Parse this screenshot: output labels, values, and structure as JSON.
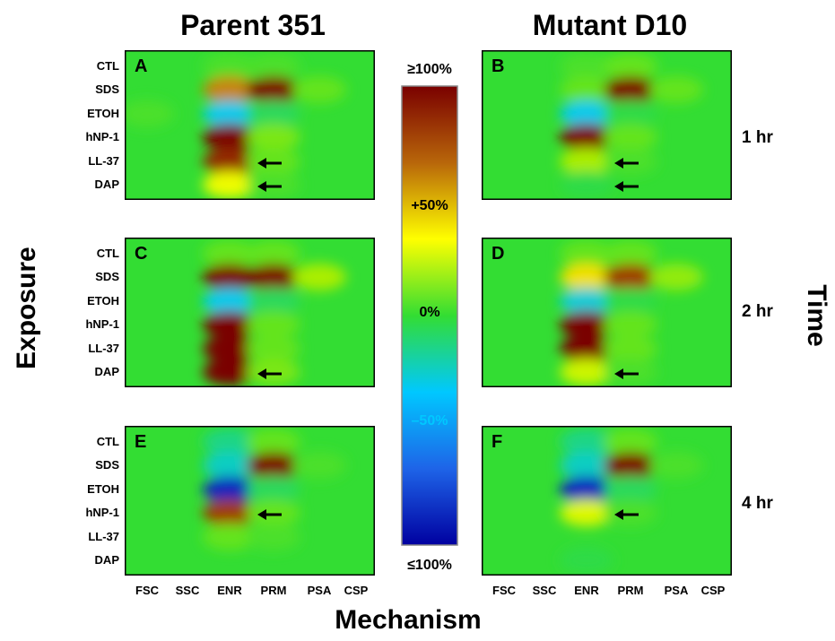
{
  "titles": {
    "left_column": "Parent 351",
    "right_column": "Mutant D10",
    "y_axis": "Exposure",
    "x_axis": "Mechanism",
    "right_axis": "Time"
  },
  "times": [
    "1 hr",
    "2 hr",
    "4 hr"
  ],
  "colorbar": {
    "labels": [
      "≥100%",
      "+50%",
      "0%",
      "–50%",
      "≤100%"
    ],
    "stops": [
      "#7a0000",
      "#b8660a",
      "#ffff00",
      "#33dd33",
      "#00c8ff",
      "#1e64e8",
      "#0000a0"
    ]
  },
  "chart_data": {
    "type": "heatmap",
    "rows": [
      "CTL",
      "SDS",
      "ETOH",
      "hNP-1",
      "LL-37",
      "DAP"
    ],
    "columns": [
      "FSC",
      "SSC",
      "ENR",
      "PRM",
      "PSA",
      "CSP"
    ],
    "value_range": [
      -100,
      100
    ],
    "value_unit": "%",
    "panels": [
      {
        "label": "A",
        "strain": "Parent 351",
        "time": "1 hr",
        "arrows_at": [
          "LL-37",
          "DAP"
        ],
        "values": [
          [
            0,
            0,
            5,
            5,
            0,
            0
          ],
          [
            0,
            0,
            70,
            100,
            10,
            0
          ],
          [
            5,
            0,
            -45,
            -10,
            0,
            0
          ],
          [
            0,
            0,
            100,
            15,
            0,
            0
          ],
          [
            0,
            0,
            90,
            10,
            0,
            0
          ],
          [
            0,
            0,
            45,
            5,
            0,
            0
          ]
        ]
      },
      {
        "label": "B",
        "strain": "Mutant D10",
        "time": "1 hr",
        "arrows_at": [
          "LL-37",
          "DAP"
        ],
        "values": [
          [
            0,
            0,
            5,
            10,
            0,
            0
          ],
          [
            0,
            0,
            10,
            100,
            10,
            0
          ],
          [
            0,
            0,
            -45,
            -5,
            0,
            0
          ],
          [
            0,
            0,
            100,
            10,
            0,
            0
          ],
          [
            0,
            0,
            25,
            5,
            0,
            0
          ],
          [
            0,
            0,
            -5,
            0,
            0,
            0
          ]
        ]
      },
      {
        "label": "C",
        "strain": "Parent 351",
        "time": "2 hr",
        "arrows_at": [
          "DAP"
        ],
        "values": [
          [
            0,
            0,
            10,
            10,
            0,
            0
          ],
          [
            0,
            0,
            100,
            100,
            25,
            0
          ],
          [
            0,
            0,
            -45,
            -10,
            0,
            0
          ],
          [
            0,
            0,
            100,
            10,
            0,
            0
          ],
          [
            0,
            0,
            100,
            10,
            0,
            0
          ],
          [
            0,
            0,
            100,
            15,
            0,
            0
          ]
        ]
      },
      {
        "label": "D",
        "strain": "Mutant D10",
        "time": "2 hr",
        "arrows_at": [
          "DAP"
        ],
        "values": [
          [
            0,
            0,
            10,
            10,
            0,
            0
          ],
          [
            0,
            0,
            55,
            85,
            20,
            0
          ],
          [
            0,
            0,
            -40,
            -5,
            0,
            0
          ],
          [
            0,
            0,
            100,
            10,
            0,
            0
          ],
          [
            0,
            0,
            100,
            10,
            0,
            0
          ],
          [
            0,
            0,
            35,
            5,
            0,
            0
          ]
        ]
      },
      {
        "label": "E",
        "strain": "Parent 351",
        "time": "4 hr",
        "arrows_at": [
          "hNP-1"
        ],
        "values": [
          [
            0,
            0,
            -20,
            10,
            0,
            0
          ],
          [
            0,
            0,
            -35,
            100,
            5,
            0
          ],
          [
            0,
            0,
            -90,
            -10,
            0,
            0
          ],
          [
            0,
            0,
            85,
            10,
            0,
            0
          ],
          [
            0,
            0,
            10,
            5,
            0,
            0
          ],
          [
            0,
            0,
            0,
            0,
            0,
            0
          ]
        ]
      },
      {
        "label": "F",
        "strain": "Mutant D10",
        "time": "4 hr",
        "arrows_at": [
          "hNP-1"
        ],
        "values": [
          [
            0,
            0,
            -20,
            10,
            0,
            0
          ],
          [
            0,
            0,
            -35,
            100,
            5,
            0
          ],
          [
            0,
            0,
            -90,
            -10,
            0,
            0
          ],
          [
            0,
            0,
            40,
            5,
            0,
            0
          ],
          [
            0,
            0,
            0,
            0,
            0,
            0
          ],
          [
            0,
            0,
            -5,
            0,
            0,
            0
          ]
        ]
      }
    ]
  }
}
